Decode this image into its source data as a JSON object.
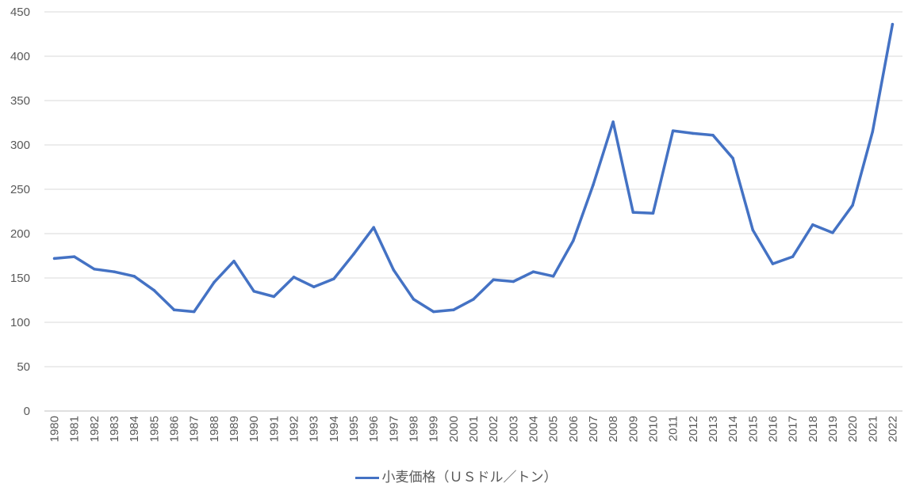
{
  "chart_data": {
    "type": "line",
    "categories": [
      "1980",
      "1981",
      "1982",
      "1983",
      "1984",
      "1985",
      "1986",
      "1987",
      "1988",
      "1989",
      "1990",
      "1991",
      "1992",
      "1993",
      "1994",
      "1995",
      "1996",
      "1997",
      "1998",
      "1999",
      "2000",
      "2001",
      "2002",
      "2003",
      "2004",
      "2005",
      "2006",
      "2007",
      "2008",
      "2009",
      "2010",
      "2011",
      "2012",
      "2013",
      "2014",
      "2015",
      "2016",
      "2017",
      "2018",
      "2019",
      "2020",
      "2021",
      "2022"
    ],
    "series": [
      {
        "name": "小麦価格（ＵＳドル／トン）",
        "color": "#4472c4",
        "values": [
          172,
          174,
          160,
          157,
          152,
          136,
          114,
          112,
          145,
          169,
          135,
          129,
          151,
          140,
          149,
          177,
          207,
          159,
          126,
          112,
          114,
          126,
          148,
          146,
          157,
          152,
          192,
          255,
          326,
          224,
          223,
          316,
          313,
          311,
          285,
          204,
          166,
          174,
          210,
          201,
          232,
          315,
          436
        ]
      }
    ],
    "ylim": [
      0,
      450
    ],
    "yticks": [
      "0",
      "50",
      "100",
      "150",
      "200",
      "250",
      "300",
      "350",
      "400",
      "450"
    ],
    "grid": true,
    "legend_position": "bottom"
  }
}
